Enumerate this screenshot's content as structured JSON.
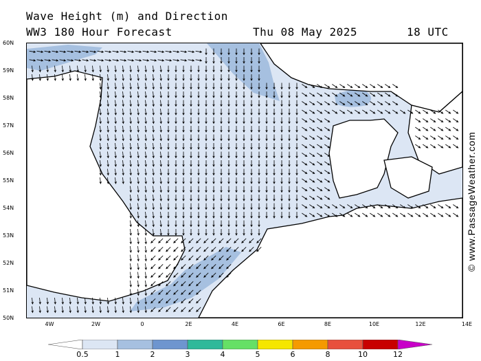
{
  "header": {
    "title": "Wave Height (m) and Direction",
    "subtitle": "WW3 180 Hour Forecast",
    "date": "Thu 08 May 2025",
    "time": "18 UTC"
  },
  "credit": "© www.PassageWeather.com",
  "axes": {
    "lat_labels": [
      "60N",
      "59N",
      "58N",
      "57N",
      "56N",
      "55N",
      "54N",
      "53N",
      "52N",
      "51N",
      "50N"
    ],
    "lon_labels": [
      "4W",
      "2W",
      "0",
      "2E",
      "4E",
      "6E",
      "8E",
      "10E",
      "12E",
      "14E"
    ]
  },
  "colors": {
    "sea_light": "#dce6f4",
    "sea_mid": "#a6c0e0",
    "coast": "#000000",
    "border": "#9a9a9a",
    "arrow": "#000000"
  },
  "legend": {
    "labels": [
      "0.5",
      "1",
      "2",
      "3",
      "4",
      "5",
      "6",
      "8",
      "10",
      "12"
    ],
    "colors": [
      "#ffffff",
      "#dce6f4",
      "#a6c0e0",
      "#6e95cf",
      "#2fb99a",
      "#66e066",
      "#f5e600",
      "#f59a00",
      "#e8503c",
      "#c80000",
      "#c800c8"
    ]
  }
}
